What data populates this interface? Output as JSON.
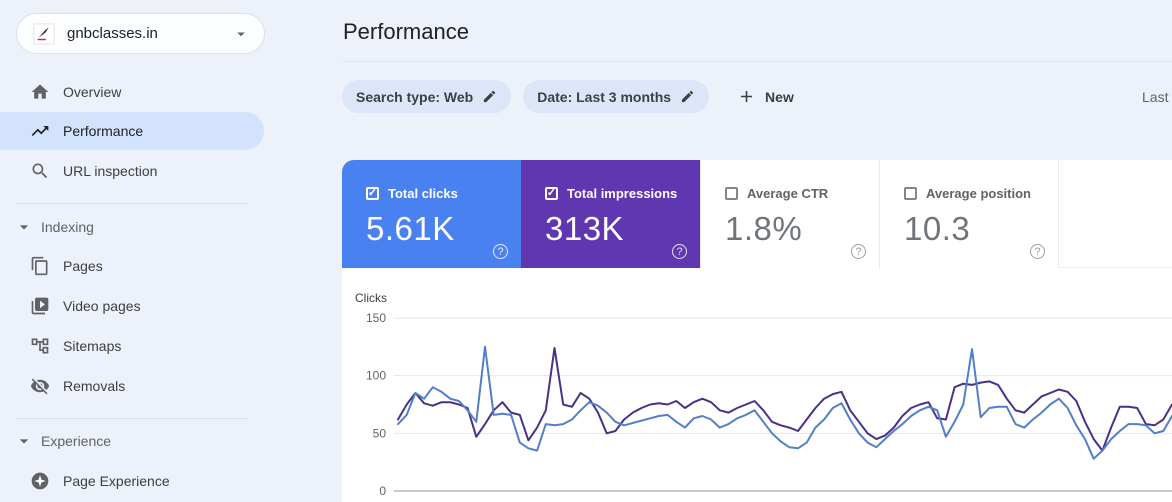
{
  "property_selector": {
    "label": "gnbclasses.in",
    "favicon": "site-favicon",
    "caret": "caret-down-icon"
  },
  "sidebar": {
    "items": [
      {
        "label": "Overview",
        "icon": "home-icon",
        "active": false
      },
      {
        "label": "Performance",
        "icon": "performance-trend-icon",
        "active": true
      },
      {
        "label": "URL inspection",
        "icon": "search-icon",
        "active": false
      }
    ],
    "sections": [
      {
        "label": "Indexing",
        "collapse_icon": "caret-down-icon",
        "items": [
          {
            "label": "Pages",
            "icon": "pages-copy-icon"
          },
          {
            "label": "Video pages",
            "icon": "video-pages-icon"
          },
          {
            "label": "Sitemaps",
            "icon": "sitemap-tree-icon"
          },
          {
            "label": "Removals",
            "icon": "eye-off-icon"
          }
        ]
      },
      {
        "label": "Experience",
        "collapse_icon": "caret-down-icon",
        "items": [
          {
            "label": "Page Experience",
            "icon": "page-experience-star-icon"
          }
        ]
      }
    ]
  },
  "header": {
    "title": "Performance",
    "last_updated_partial": "Last"
  },
  "filters": {
    "chips": [
      {
        "label": "Search type: Web",
        "icon": "edit-pencil-icon"
      },
      {
        "label": "Date: Last 3 months",
        "icon": "edit-pencil-icon"
      }
    ],
    "new_button": {
      "label": "New",
      "icon": "plus-icon"
    }
  },
  "metrics": [
    {
      "label": "Total clicks",
      "value": "5.61K",
      "checked": true,
      "color": "#4a81f0",
      "help_icon": "help-icon"
    },
    {
      "label": "Total impressions",
      "value": "313K",
      "checked": true,
      "color": "#6136b1",
      "help_icon": "help-icon"
    },
    {
      "label": "Average CTR",
      "value": "1.8%",
      "checked": false,
      "color": null,
      "help_icon": "help-icon"
    },
    {
      "label": "Average position",
      "value": "10.3",
      "checked": false,
      "color": null,
      "help_icon": "help-icon"
    }
  ],
  "chart_data": {
    "type": "line",
    "title": "",
    "ylabel": "Clicks",
    "xlabel": "",
    "ylim": [
      0,
      150
    ],
    "yticks": [
      150,
      100,
      50,
      0
    ],
    "grid": true,
    "legend_position": "none",
    "x_description": "daily points over last 3 months (~90 days), x tick labels cropped out of screenshot",
    "series": [
      {
        "name": "Total clicks",
        "color": "#527fc7",
        "values": [
          58,
          66,
          85,
          80,
          90,
          86,
          80,
          78,
          70,
          60,
          125,
          66,
          67,
          66,
          42,
          37,
          35,
          58,
          57,
          58,
          62,
          70,
          77,
          74,
          68,
          60,
          57,
          59,
          61,
          63,
          65,
          66,
          60,
          55,
          63,
          65,
          62,
          55,
          58,
          63,
          66,
          70,
          60,
          50,
          43,
          38,
          37,
          42,
          55,
          62,
          72,
          76,
          62,
          50,
          42,
          38,
          45,
          52,
          58,
          65,
          70,
          73,
          70,
          47,
          60,
          75,
          123,
          64,
          72,
          73,
          73,
          58,
          55,
          62,
          68,
          75,
          80,
          72,
          57,
          45,
          28,
          35,
          45,
          52,
          58,
          58,
          57,
          50,
          52,
          65
        ]
      },
      {
        "name": "Total impressions",
        "color": "#483189",
        "values": [
          62,
          75,
          85,
          76,
          74,
          77,
          77,
          75,
          72,
          47,
          58,
          70,
          77,
          68,
          66,
          44,
          55,
          70,
          124,
          75,
          73,
          85,
          80,
          68,
          50,
          52,
          62,
          68,
          72,
          75,
          76,
          75,
          78,
          72,
          77,
          80,
          77,
          70,
          68,
          72,
          75,
          78,
          70,
          60,
          57,
          55,
          52,
          62,
          72,
          80,
          84,
          86,
          70,
          60,
          50,
          45,
          48,
          55,
          65,
          72,
          75,
          77,
          63,
          62,
          90,
          93,
          92,
          94,
          95,
          92,
          80,
          70,
          68,
          75,
          82,
          85,
          88,
          86,
          78,
          60,
          45,
          35,
          55,
          73,
          73,
          72,
          58,
          57,
          62,
          75
        ]
      }
    ]
  }
}
